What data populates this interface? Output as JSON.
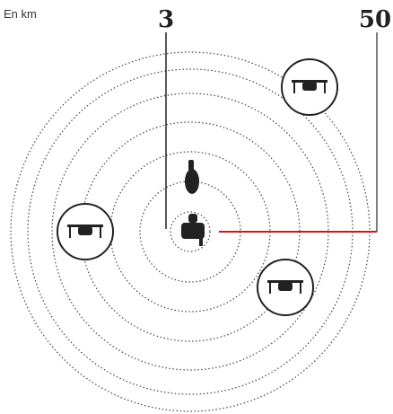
{
  "unit_note": "En km",
  "radius_labels": {
    "inner": "3",
    "outer": "50"
  }
}
